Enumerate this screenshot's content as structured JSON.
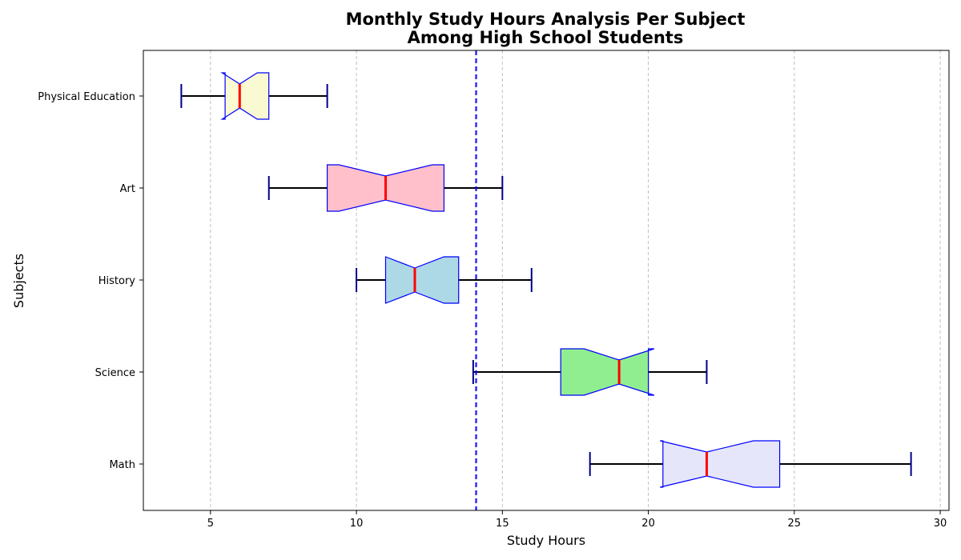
{
  "chart_data": {
    "type": "box",
    "orientation": "horizontal",
    "title_lines": [
      "Monthly Study Hours Analysis Per Subject",
      "Among High School Students"
    ],
    "xlabel": "Study Hours",
    "ylabel": "Subjects",
    "xlim": [
      2.7,
      30.3
    ],
    "xticks": [
      5,
      10,
      15,
      20,
      25,
      30
    ],
    "xtick_labels": [
      "5",
      "10",
      "15",
      "20",
      "25",
      "30"
    ],
    "grid": "x-dashed",
    "notched": true,
    "reference_line": {
      "x": 14.1,
      "color": "#0000ff",
      "style": "dashed"
    },
    "categories": [
      "Math",
      "Science",
      "History",
      "Art",
      "Physical Education"
    ],
    "boxes": [
      {
        "name": "Math",
        "whisker_low": 18,
        "q1": 20.5,
        "median": 22,
        "q3": 24.5,
        "whisker_high": 29,
        "notch_low": 20.4,
        "notch_high": 23.6,
        "color": "#e6e6fa"
      },
      {
        "name": "Science",
        "whisker_low": 14,
        "q1": 17,
        "median": 19,
        "q3": 20,
        "whisker_high": 22,
        "notch_low": 17.8,
        "notch_high": 20.2,
        "color": "#90ee90"
      },
      {
        "name": "History",
        "whisker_low": 10,
        "q1": 11,
        "median": 12,
        "q3": 13.5,
        "whisker_high": 16,
        "notch_low": 11,
        "notch_high": 13,
        "color": "#add8e6"
      },
      {
        "name": "Art",
        "whisker_low": 7,
        "q1": 9,
        "median": 11,
        "q3": 13,
        "whisker_high": 15,
        "notch_low": 9.4,
        "notch_high": 12.6,
        "color": "#ffc0cb"
      },
      {
        "name": "Physical Education",
        "whisker_low": 4,
        "q1": 5.5,
        "median": 6,
        "q3": 7,
        "whisker_high": 9,
        "notch_low": 5.4,
        "notch_high": 6.6,
        "color": "#fafad2"
      }
    ],
    "colors": {
      "box_edge": "#0000ff",
      "median": "#ff0000",
      "whisker": "#000000",
      "cap": "#00008b",
      "grid": "#c0c0c0"
    }
  }
}
